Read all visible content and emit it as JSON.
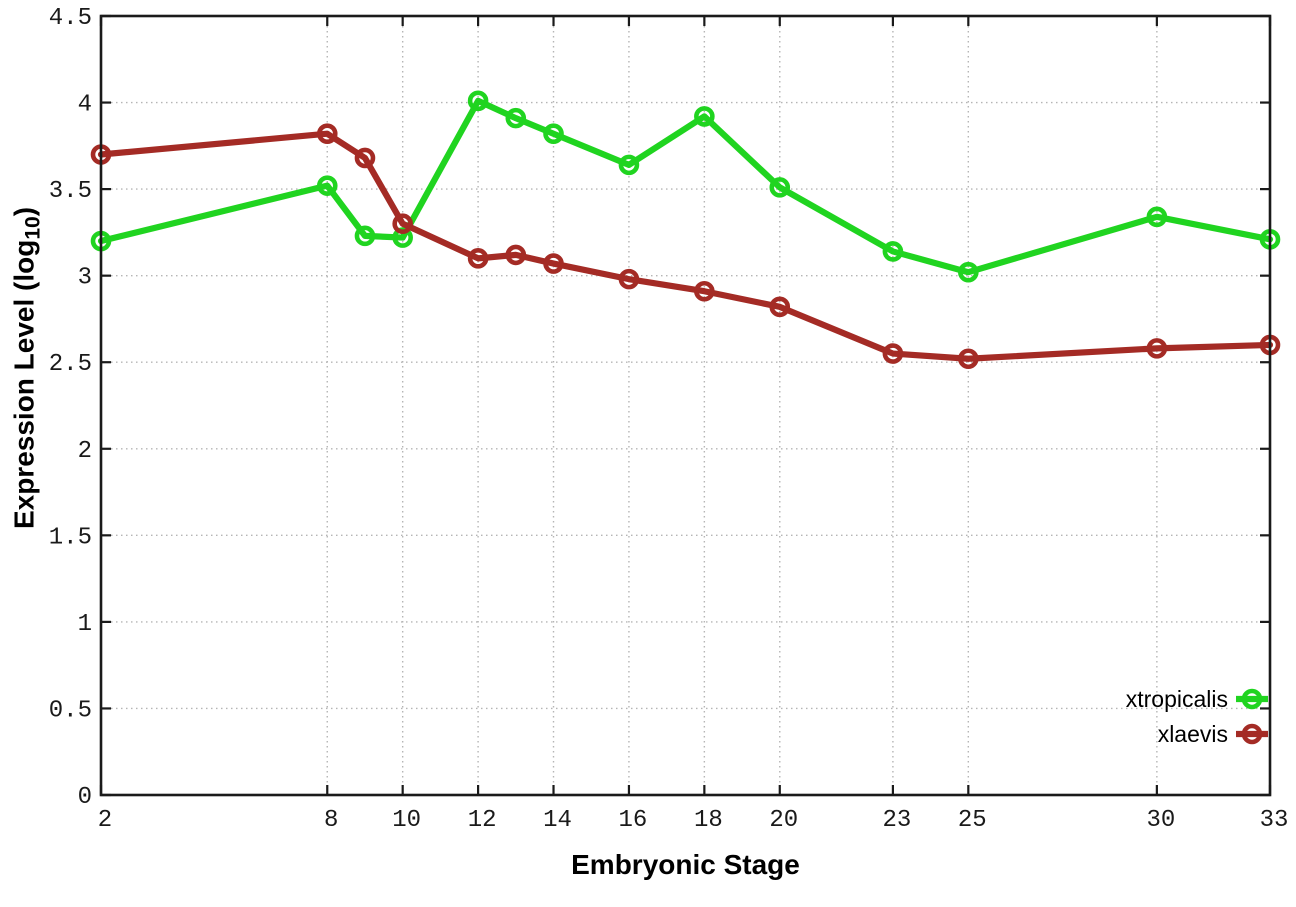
{
  "chart_data": {
    "type": "line",
    "title": "",
    "xlabel": "Embryonic Stage",
    "ylabel": "Expression Level (log10)",
    "x": [
      2,
      8,
      9,
      10,
      12,
      13,
      14,
      16,
      18,
      20,
      23,
      25,
      30,
      33
    ],
    "series": [
      {
        "name": "xtropicalis",
        "color": "#20d420",
        "values": [
          3.2,
          3.52,
          3.23,
          3.22,
          4.01,
          3.91,
          3.82,
          3.64,
          3.92,
          3.51,
          3.14,
          3.02,
          3.34,
          3.21
        ]
      },
      {
        "name": "xlaevis",
        "color": "#a42b25",
        "values": [
          3.7,
          3.82,
          3.68,
          3.3,
          3.1,
          3.12,
          3.07,
          2.98,
          2.91,
          2.82,
          2.55,
          2.52,
          2.58,
          2.6
        ]
      }
    ],
    "xlim": [
      2,
      33
    ],
    "ylim": [
      0,
      4.5
    ],
    "x_ticks": [
      2,
      8,
      10,
      12,
      14,
      16,
      18,
      20,
      23,
      25,
      30,
      33
    ],
    "x_tick_labels": [
      "2",
      "8",
      "10",
      "12",
      "14",
      "16",
      "18",
      "20",
      "23",
      "25",
      "30",
      "33"
    ],
    "y_ticks": [
      0,
      0.5,
      1,
      1.5,
      2,
      2.5,
      3,
      3.5,
      4,
      4.5
    ],
    "y_tick_labels": [
      "0",
      "0.5",
      "1",
      "1.5",
      "2",
      "2.5",
      "3",
      "3.5",
      "4",
      "4.5"
    ],
    "grid": true,
    "legend_position": "bottom-right",
    "legend": [
      "xtropicalis",
      "xlaevis"
    ]
  },
  "y_axis": {
    "title_pre": "Expression Level (log",
    "title_sub": "10",
    "title_post": ")"
  },
  "colors": {
    "background": "#ffffff",
    "axis": "#1a1a1a",
    "grid": "#b5b5b5",
    "xtropicalis": "#20d420",
    "xlaevis": "#a42b25"
  }
}
